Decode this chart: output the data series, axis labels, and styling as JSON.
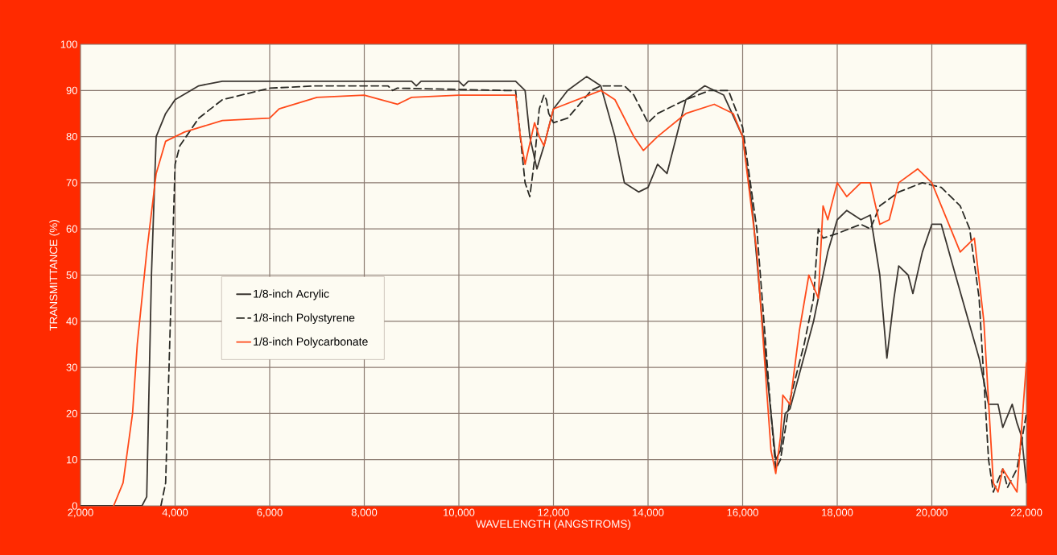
{
  "chart_data": {
    "type": "line",
    "xlabel": "WAVELENGTH (ANGSTROMS)",
    "ylabel": "TRANSMITTANCE (%)",
    "xlim": [
      2000,
      22000
    ],
    "ylim": [
      0,
      100
    ],
    "xticks": [
      {
        "value": 2000,
        "label": "2,000"
      },
      {
        "value": 4000,
        "label": "4,000"
      },
      {
        "value": 6000,
        "label": "6,000"
      },
      {
        "value": 8000,
        "label": "8,000"
      },
      {
        "value": 10000,
        "label": "10,000"
      },
      {
        "value": 12000,
        "label": "12,000"
      },
      {
        "value": 14000,
        "label": "14,000"
      },
      {
        "value": 16000,
        "label": "16,000"
      },
      {
        "value": 18000,
        "label": "18,000"
      },
      {
        "value": 20000,
        "label": "20,000"
      },
      {
        "value": 22000,
        "label": "22,000"
      }
    ],
    "yticks": [
      0,
      10,
      20,
      30,
      40,
      50,
      60,
      70,
      80,
      90,
      100
    ],
    "grid": true,
    "legend": "left",
    "series": [
      {
        "name": "1/8-inch Acrylic",
        "color": "#3a3530",
        "line_style": "solid",
        "x": [
          2000,
          3300,
          3400,
          3500,
          3600,
          3800,
          4000,
          4500,
          5000,
          9000,
          9100,
          9200,
          10000,
          10100,
          10200,
          11200,
          11400,
          11500,
          11650,
          11800,
          12000,
          12300,
          12700,
          13000,
          13300,
          13500,
          13800,
          14000,
          14200,
          14400,
          14600,
          14800,
          15200,
          15600,
          16000,
          16200,
          16500,
          16700,
          16800,
          16900,
          17000,
          17500,
          17800,
          18000,
          18200,
          18500,
          18700,
          18900,
          19050,
          19200,
          19300,
          19500,
          19600,
          19800,
          20000,
          20200,
          20500,
          21000,
          21200,
          21400,
          21500,
          21700,
          21800,
          21900,
          22000
        ],
        "values": [
          0,
          0,
          2,
          50,
          80,
          85,
          88,
          91,
          92,
          92,
          91,
          92,
          92,
          91,
          92,
          92,
          90,
          80,
          73,
          78,
          86,
          90,
          93,
          91,
          80,
          70,
          68,
          69,
          74,
          72,
          80,
          88,
          91,
          89,
          80,
          65,
          30,
          10,
          12,
          20,
          21,
          40,
          55,
          62,
          64,
          62,
          63,
          50,
          32,
          45,
          52,
          50,
          46,
          55,
          61,
          61,
          50,
          32,
          22,
          22,
          17,
          22,
          18,
          15,
          5
        ]
      },
      {
        "name": "1/8-inch Polystyrene",
        "color": "#2a2a25",
        "line_style": "dashed",
        "x": [
          3700,
          3800,
          3900,
          4000,
          4100,
          4500,
          5000,
          6000,
          7000,
          8500,
          8600,
          8700,
          11000,
          11200,
          11400,
          11500,
          11600,
          11700,
          11800,
          11850,
          11900,
          12000,
          12300,
          12800,
          13000,
          13500,
          13700,
          14000,
          14200,
          14800,
          15300,
          15700,
          16000,
          16300,
          16600,
          16700,
          16800,
          17000,
          17300,
          17500,
          17600,
          17700,
          18000,
          18500,
          18700,
          18900,
          19300,
          19800,
          20200,
          20600,
          20800,
          21000,
          21200,
          21300,
          21500,
          21600,
          21800,
          22000
        ],
        "values": [
          0,
          5,
          40,
          74,
          78,
          84,
          88,
          90.5,
          91,
          91,
          90,
          90.5,
          90,
          90,
          70,
          67,
          75,
          86,
          89,
          88,
          85,
          83,
          84,
          90,
          91,
          91,
          89,
          83,
          85,
          88,
          90,
          90,
          82,
          60,
          20,
          8,
          10,
          23,
          35,
          45,
          60,
          58,
          59,
          61,
          60,
          65,
          68,
          70,
          69,
          65,
          60,
          45,
          10,
          3,
          8,
          4,
          8,
          20
        ]
      },
      {
        "name": "1/8-inch Polycarbonate",
        "color": "#ff4a1a",
        "line_style": "solid",
        "x": [
          2700,
          2900,
          3100,
          3200,
          3400,
          3600,
          3800,
          4200,
          5000,
          6000,
          6200,
          7000,
          8000,
          8700,
          9000,
          10000,
          11200,
          11300,
          11400,
          11600,
          11700,
          11800,
          12000,
          13000,
          13300,
          13700,
          13900,
          14200,
          14800,
          15400,
          15800,
          16000,
          16300,
          16600,
          16700,
          16800,
          16850,
          17000,
          17200,
          17400,
          17600,
          17700,
          17800,
          18000,
          18200,
          18500,
          18700,
          18900,
          19100,
          19300,
          19700,
          20000,
          20400,
          20600,
          20800,
          20900,
          21100,
          21300,
          21400,
          21500,
          21800,
          22000
        ],
        "values": [
          0,
          5,
          20,
          35,
          55,
          72,
          79,
          81,
          83.5,
          84,
          86,
          88.5,
          89,
          87,
          88.5,
          89,
          89,
          80,
          74,
          83,
          80,
          78,
          86,
          90,
          88,
          80,
          77,
          80,
          85,
          87,
          85,
          80,
          55,
          12,
          7,
          15,
          24,
          22,
          38,
          50,
          45,
          65,
          62,
          70,
          67,
          70,
          70,
          61,
          62,
          70,
          73,
          70,
          60,
          55,
          57,
          58,
          40,
          5,
          3,
          8,
          3,
          31
        ]
      }
    ]
  }
}
